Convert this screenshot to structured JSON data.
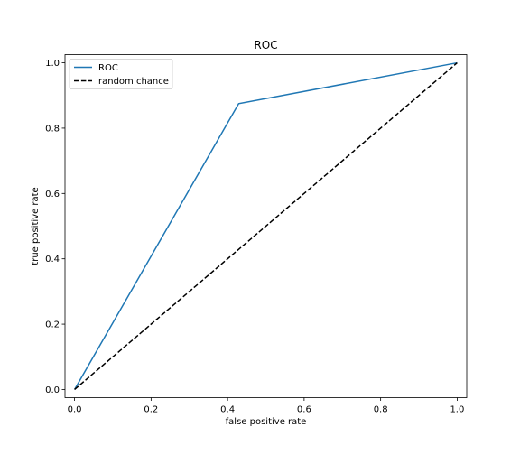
{
  "chart_data": {
    "type": "line",
    "title": "ROC",
    "xlabel": "false positive rate",
    "ylabel": "true positive rate",
    "xlim": [
      -0.025,
      1.025
    ],
    "ylim": [
      -0.025,
      1.025
    ],
    "xticks": [
      0.0,
      0.2,
      0.4,
      0.6,
      0.8,
      1.0
    ],
    "yticks": [
      0.0,
      0.2,
      0.4,
      0.6,
      0.8,
      1.0
    ],
    "xtick_labels": [
      "0.0",
      "0.2",
      "0.4",
      "0.6",
      "0.8",
      "1.0"
    ],
    "ytick_labels": [
      "0.0",
      "0.2",
      "0.4",
      "0.6",
      "0.8",
      "1.0"
    ],
    "grid": false,
    "legend_position": "top-left",
    "series": [
      {
        "name": "ROC",
        "color": "#1f77b4",
        "style": "solid",
        "x": [
          0.0,
          0.429,
          1.0
        ],
        "y": [
          0.0,
          0.875,
          1.0
        ]
      },
      {
        "name": "random chance",
        "color": "#000000",
        "style": "dashed",
        "x": [
          0.0,
          1.0
        ],
        "y": [
          0.0,
          1.0
        ]
      }
    ]
  }
}
